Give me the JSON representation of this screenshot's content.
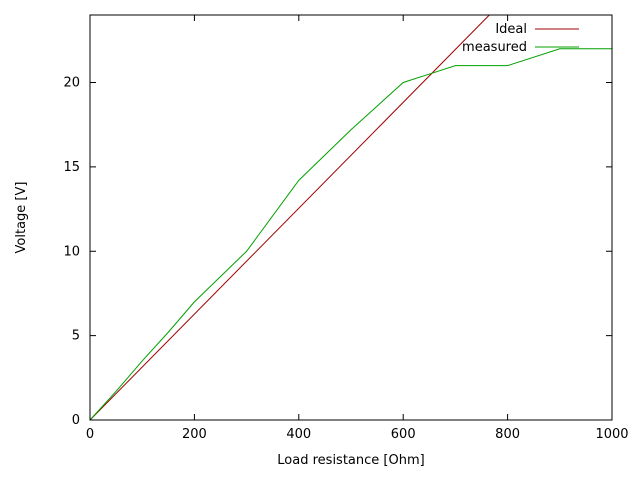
{
  "figure": {
    "background": "#ffffff",
    "axis_color": "#000000"
  },
  "chart_data": {
    "type": "line",
    "title": "",
    "xlabel": "Load resistance [Ohm]",
    "ylabel": "Voltage [V]",
    "xlim": [
      0,
      1000
    ],
    "ylim": [
      0,
      24
    ],
    "xticks": [
      0,
      200,
      400,
      600,
      800,
      1000
    ],
    "yticks": [
      0,
      5,
      10,
      15,
      20
    ],
    "grid": false,
    "legend_position": "top-right-inside",
    "series": [
      {
        "name": "Ideal",
        "color": "#a00000",
        "x": [
          0,
          765
        ],
        "y": [
          0,
          24
        ]
      },
      {
        "name": "measured",
        "color": "#00a000",
        "x": [
          0,
          50,
          100,
          150,
          200,
          300,
          400,
          500,
          600,
          650,
          700,
          800,
          900,
          1000
        ],
        "y": [
          0,
          1.7,
          3.5,
          5.2,
          7,
          10,
          14.2,
          17.2,
          20,
          20.5,
          21,
          21,
          22,
          22
        ]
      }
    ]
  }
}
